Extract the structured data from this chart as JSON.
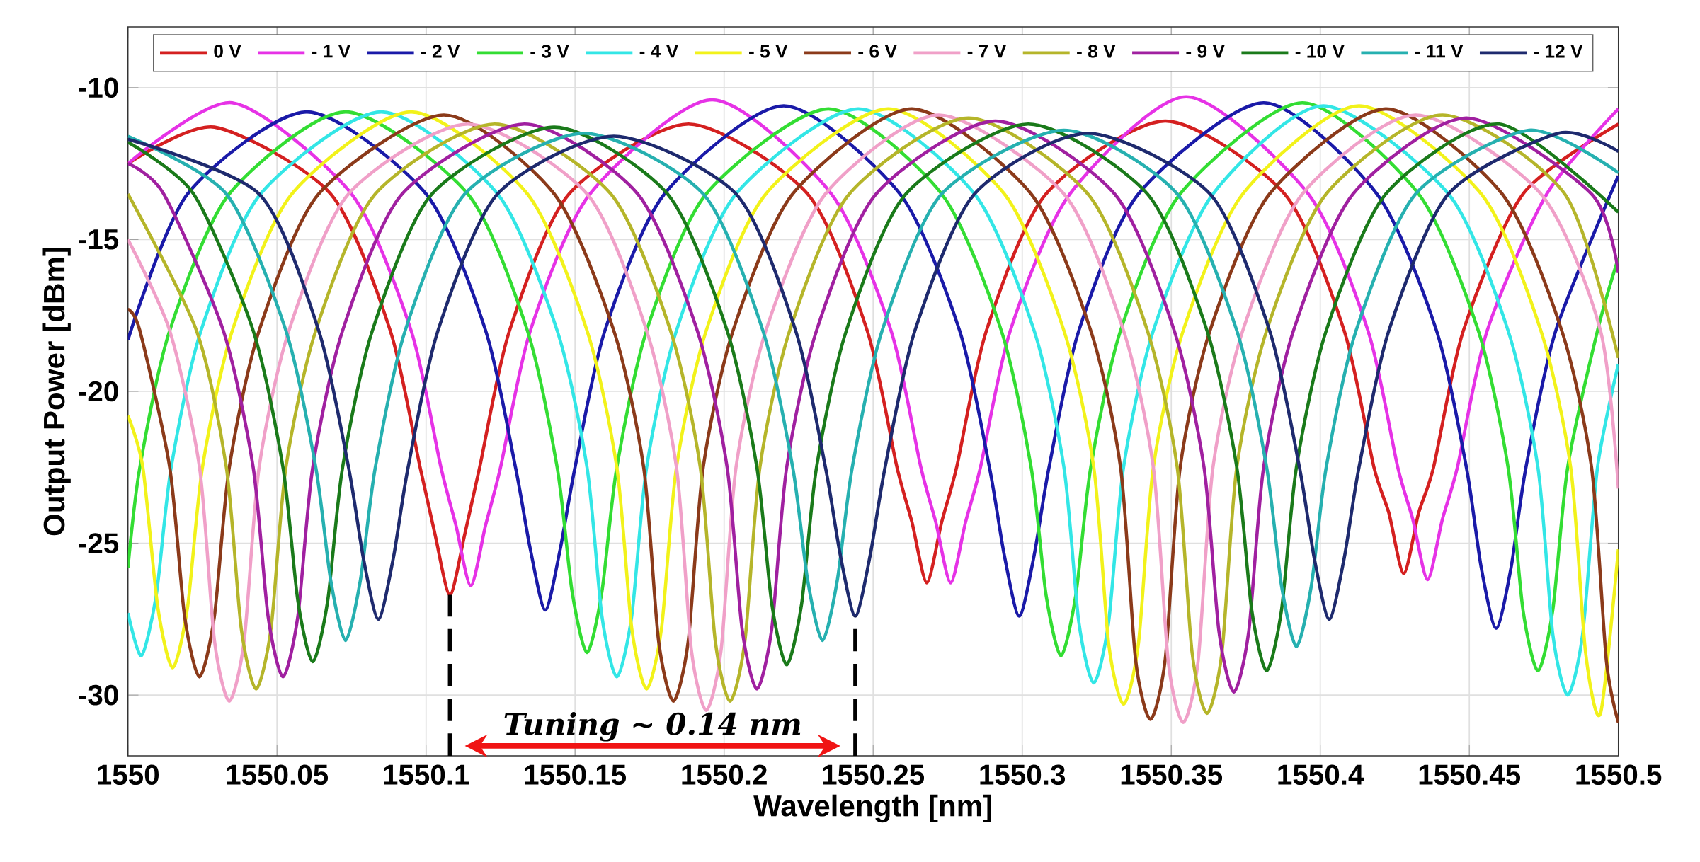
{
  "chart_data": {
    "type": "line",
    "xlabel": "Wavelength [nm]",
    "ylabel": "Output Power [dBm]",
    "xlim": [
      1550,
      1550.5
    ],
    "ylim": [
      -32,
      -8
    ],
    "xticks": [
      1550,
      1550.05,
      1550.1,
      1550.15,
      1550.2,
      1550.25,
      1550.3,
      1550.35,
      1550.4,
      1550.45,
      1550.5
    ],
    "yticks": [
      -30,
      -25,
      -20,
      -15,
      -10
    ],
    "grid": true,
    "legend": "top",
    "marker": "none",
    "line_style": "solid",
    "ref_lines": [
      {
        "axis": "x",
        "value": 1550.108,
        "color": "#000000",
        "line_style": "dashed"
      },
      {
        "axis": "x",
        "value": 1550.244,
        "color": "#000000",
        "line_style": "dashed"
      }
    ],
    "annotations": [
      "Tuning ~ 0.14 nm"
    ],
    "series": [
      {
        "name": "0 V",
        "color": "#d42020",
        "x": [
          1550,
          1550.029,
          1550.068,
          1550.088,
          1550.098,
          1550.103,
          1550.108,
          1550.113,
          1550.118,
          1550.128,
          1550.148,
          1550.188,
          1550.228,
          1550.248,
          1550.258,
          1550.263,
          1550.268,
          1550.273,
          1550.278,
          1550.288,
          1550.308,
          1550.348,
          1550.388,
          1550.408,
          1550.418,
          1550.423,
          1550.428,
          1550.433,
          1550.438,
          1550.448,
          1550.468,
          1550.5
        ],
        "values": [
          -12.5,
          -11.3,
          -13.5,
          -18.0,
          -22.5,
          -24.7,
          -26.7,
          -24.7,
          -22.5,
          -18.0,
          -13.5,
          -11.2,
          -13.5,
          -18.0,
          -22.5,
          -24.3,
          -26.3,
          -24.3,
          -22.5,
          -18.0,
          -13.5,
          -11.1,
          -13.5,
          -18.0,
          -22.5,
          -24.0,
          -26.0,
          -24.0,
          -22.5,
          -18.0,
          -13.5,
          -11.2
        ]
      },
      {
        "name": "- 1 V",
        "color": "#e632e6",
        "x": [
          1550,
          1550.035,
          1550.075,
          1550.095,
          1550.105,
          1550.11,
          1550.115,
          1550.12,
          1550.125,
          1550.135,
          1550.155,
          1550.196,
          1550.236,
          1550.256,
          1550.266,
          1550.271,
          1550.276,
          1550.281,
          1550.286,
          1550.296,
          1550.316,
          1550.355,
          1550.396,
          1550.416,
          1550.426,
          1550.431,
          1550.436,
          1550.441,
          1550.446,
          1550.456,
          1550.476,
          1550.5
        ],
        "values": [
          -12.5,
          -10.5,
          -13.5,
          -18.0,
          -22.5,
          -24.4,
          -26.4,
          -24.4,
          -22.5,
          -18.0,
          -13.5,
          -10.4,
          -13.5,
          -18.0,
          -22.5,
          -24.3,
          -26.3,
          -24.3,
          -22.5,
          -18.0,
          -13.5,
          -10.3,
          -13.5,
          -18.0,
          -22.5,
          -24.2,
          -26.2,
          -24.2,
          -22.5,
          -18.0,
          -13.5,
          -10.7
        ]
      },
      {
        "name": "- 2 V",
        "color": "#1a1aa8",
        "x": [
          1550,
          1550.02,
          1550.06,
          1550.1,
          1550.12,
          1550.13,
          1550.135,
          1550.14,
          1550.145,
          1550.15,
          1550.16,
          1550.18,
          1550.22,
          1550.259,
          1550.279,
          1550.289,
          1550.294,
          1550.299,
          1550.304,
          1550.309,
          1550.319,
          1550.339,
          1550.381,
          1550.419,
          1550.439,
          1550.449,
          1550.454,
          1550.459,
          1550.464,
          1550.469,
          1550.479,
          1550.5
        ],
        "values": [
          -18.3,
          -13.5,
          -10.8,
          -13.5,
          -18.0,
          -22.5,
          -25.2,
          -27.2,
          -25.2,
          -22.5,
          -18.0,
          -13.5,
          -10.6,
          -13.5,
          -18.0,
          -22.5,
          -25.4,
          -27.4,
          -25.4,
          -22.5,
          -18.0,
          -13.5,
          -10.5,
          -13.5,
          -18.0,
          -22.5,
          -25.8,
          -27.8,
          -25.8,
          -22.5,
          -18.0,
          -12.9
        ]
      },
      {
        "name": "- 3 V",
        "color": "#33dd33",
        "x": [
          1550,
          1550.004,
          1550.014,
          1550.034,
          1550.073,
          1550.114,
          1550.134,
          1550.144,
          1550.149,
          1550.154,
          1550.159,
          1550.164,
          1550.174,
          1550.194,
          1550.235,
          1550.273,
          1550.293,
          1550.303,
          1550.308,
          1550.313,
          1550.318,
          1550.323,
          1550.333,
          1550.353,
          1550.394,
          1550.433,
          1550.453,
          1550.463,
          1550.468,
          1550.473,
          1550.478,
          1550.483,
          1550.493,
          1550.5
        ],
        "values": [
          -25.8,
          -22.5,
          -18.0,
          -13.5,
          -10.8,
          -13.5,
          -18.0,
          -22.5,
          -26.6,
          -28.6,
          -26.6,
          -22.5,
          -18.0,
          -13.5,
          -10.7,
          -13.5,
          -18.0,
          -22.5,
          -26.7,
          -28.7,
          -26.7,
          -22.5,
          -18.0,
          -13.5,
          -10.5,
          -13.5,
          -18.0,
          -22.5,
          -27.2,
          -29.2,
          -27.2,
          -22.5,
          -18.0,
          -15.6
        ]
      },
      {
        "name": "- 4 V",
        "color": "#33e6e6",
        "x": [
          1550,
          1550.0045,
          1550.0095,
          1550.0145,
          1550.0245,
          1550.0445,
          1550.085,
          1550.124,
          1550.144,
          1550.154,
          1550.159,
          1550.164,
          1550.169,
          1550.174,
          1550.184,
          1550.204,
          1550.245,
          1550.284,
          1550.304,
          1550.314,
          1550.319,
          1550.324,
          1550.329,
          1550.334,
          1550.344,
          1550.364,
          1550.401,
          1550.443,
          1550.463,
          1550.473,
          1550.478,
          1550.483,
          1550.488,
          1550.493,
          1550.5
        ],
        "values": [
          -27.3,
          -28.7,
          -26.7,
          -22.5,
          -18.0,
          -13.5,
          -10.8,
          -13.5,
          -18.0,
          -22.5,
          -27.4,
          -29.4,
          -27.4,
          -22.5,
          -18.0,
          -13.5,
          -10.7,
          -13.5,
          -18.0,
          -22.5,
          -27.6,
          -29.6,
          -27.6,
          -22.5,
          -18.0,
          -13.5,
          -10.6,
          -13.5,
          -18.0,
          -22.5,
          -28.0,
          -30.0,
          -28.0,
          -22.5,
          -19.1
        ]
      },
      {
        "name": "- 5 V",
        "color": "#f2f21a",
        "x": [
          1550,
          1550.005,
          1550.01,
          1550.015,
          1550.02,
          1550.025,
          1550.035,
          1550.055,
          1550.095,
          1550.134,
          1550.154,
          1550.164,
          1550.169,
          1550.174,
          1550.179,
          1550.184,
          1550.194,
          1550.214,
          1550.255,
          1550.294,
          1550.314,
          1550.324,
          1550.329,
          1550.334,
          1550.339,
          1550.344,
          1550.354,
          1550.374,
          1550.413,
          1550.454,
          1550.474,
          1550.484,
          1550.489,
          1550.494,
          1550.5
        ],
        "values": [
          -20.8,
          -22.5,
          -27.1,
          -29.1,
          -27.1,
          -22.5,
          -18.0,
          -13.5,
          -10.8,
          -13.5,
          -18.0,
          -22.5,
          -27.8,
          -29.8,
          -27.8,
          -22.5,
          -18.0,
          -13.5,
          -10.7,
          -13.5,
          -18.0,
          -22.5,
          -28.3,
          -30.3,
          -28.3,
          -22.5,
          -18.0,
          -13.5,
          -10.6,
          -13.5,
          -18.0,
          -22.5,
          -28.6,
          -30.6,
          -25.2
        ]
      },
      {
        "name": "- 6 V",
        "color": "#8b3a1a",
        "x": [
          1550,
          1550.004,
          1550.014,
          1550.019,
          1550.024,
          1550.029,
          1550.034,
          1550.044,
          1550.064,
          1550.106,
          1550.143,
          1550.163,
          1550.173,
          1550.178,
          1550.183,
          1550.188,
          1550.193,
          1550.203,
          1550.223,
          1550.263,
          1550.303,
          1550.323,
          1550.333,
          1550.338,
          1550.343,
          1550.348,
          1550.353,
          1550.363,
          1550.383,
          1550.422,
          1550.461,
          1550.481,
          1550.491,
          1550.496,
          1550.5
        ],
        "values": [
          -17.3,
          -18.0,
          -22.5,
          -27.4,
          -29.4,
          -27.4,
          -22.5,
          -18.0,
          -13.5,
          -10.9,
          -13.5,
          -18.0,
          -22.5,
          -28.2,
          -30.2,
          -28.2,
          -22.5,
          -18.0,
          -13.5,
          -10.7,
          -13.5,
          -18.0,
          -22.5,
          -28.8,
          -30.8,
          -28.8,
          -22.5,
          -18.0,
          -13.5,
          -10.7,
          -13.5,
          -18.0,
          -22.5,
          -28.9,
          -30.9
        ]
      },
      {
        "name": "- 7 V",
        "color": "#f0a0c8",
        "x": [
          1550,
          1550.014,
          1550.024,
          1550.029,
          1550.034,
          1550.039,
          1550.044,
          1550.054,
          1550.074,
          1550.114,
          1550.154,
          1550.174,
          1550.184,
          1550.189,
          1550.194,
          1550.199,
          1550.204,
          1550.214,
          1550.234,
          1550.272,
          1550.314,
          1550.334,
          1550.344,
          1550.349,
          1550.354,
          1550.359,
          1550.364,
          1550.374,
          1550.394,
          1550.432,
          1550.474,
          1550.494,
          1550.5
        ],
        "values": [
          -15.0,
          -18.0,
          -22.5,
          -28.2,
          -30.2,
          -28.2,
          -22.5,
          -18.0,
          -13.5,
          -11.2,
          -13.5,
          -18.0,
          -22.5,
          -28.5,
          -30.5,
          -28.5,
          -22.5,
          -18.0,
          -13.5,
          -10.9,
          -13.5,
          -18.0,
          -22.5,
          -28.9,
          -30.9,
          -28.9,
          -22.5,
          -18.0,
          -13.5,
          -10.9,
          -13.5,
          -18.0,
          -23.2
        ]
      },
      {
        "name": "- 8 V",
        "color": "#b5b52a",
        "x": [
          1550,
          1550.023,
          1550.033,
          1550.038,
          1550.043,
          1550.048,
          1550.053,
          1550.063,
          1550.083,
          1550.123,
          1550.162,
          1550.182,
          1550.192,
          1550.197,
          1550.202,
          1550.207,
          1550.212,
          1550.222,
          1550.242,
          1550.282,
          1550.322,
          1550.342,
          1550.352,
          1550.357,
          1550.362,
          1550.367,
          1550.372,
          1550.382,
          1550.402,
          1550.441,
          1550.482,
          1550.5
        ],
        "values": [
          -13.5,
          -18.0,
          -22.5,
          -27.8,
          -29.8,
          -27.8,
          -22.5,
          -18.0,
          -13.5,
          -11.2,
          -13.5,
          -18.0,
          -22.5,
          -28.2,
          -30.2,
          -28.2,
          -22.5,
          -18.0,
          -13.5,
          -11.0,
          -13.5,
          -18.0,
          -22.5,
          -28.6,
          -30.6,
          -28.6,
          -22.5,
          -18.0,
          -13.5,
          -10.9,
          -13.5,
          -18.9
        ]
      },
      {
        "name": "- 9 V",
        "color": "#a020a0",
        "x": [
          1550,
          1550.012,
          1550.032,
          1550.042,
          1550.047,
          1550.052,
          1550.057,
          1550.062,
          1550.072,
          1550.092,
          1550.133,
          1550.171,
          1550.191,
          1550.201,
          1550.206,
          1550.211,
          1550.216,
          1550.221,
          1550.231,
          1550.251,
          1550.291,
          1550.331,
          1550.351,
          1550.361,
          1550.366,
          1550.371,
          1550.376,
          1550.381,
          1550.391,
          1550.411,
          1550.449,
          1550.491,
          1550.5
        ],
        "values": [
          -12.5,
          -13.5,
          -18.0,
          -22.5,
          -27.4,
          -29.4,
          -27.4,
          -22.5,
          -18.0,
          -13.5,
          -11.2,
          -13.5,
          -18.0,
          -22.5,
          -27.8,
          -29.8,
          -27.8,
          -22.5,
          -18.0,
          -13.5,
          -11.1,
          -13.5,
          -18.0,
          -22.5,
          -27.9,
          -29.9,
          -27.9,
          -22.5,
          -18.0,
          -13.5,
          -11.0,
          -13.5,
          -16.1
        ]
      },
      {
        "name": "- 10 V",
        "color": "#1a7a1a",
        "x": [
          1550,
          1550.022,
          1550.042,
          1550.052,
          1550.057,
          1550.062,
          1550.067,
          1550.072,
          1550.082,
          1550.102,
          1550.143,
          1550.181,
          1550.201,
          1550.211,
          1550.216,
          1550.221,
          1550.226,
          1550.231,
          1550.241,
          1550.261,
          1550.302,
          1550.342,
          1550.362,
          1550.372,
          1550.377,
          1550.382,
          1550.387,
          1550.392,
          1550.402,
          1550.422,
          1550.46,
          1550.5
        ],
        "values": [
          -11.8,
          -13.5,
          -18.0,
          -22.5,
          -26.9,
          -28.9,
          -26.9,
          -22.5,
          -18.0,
          -13.5,
          -11.3,
          -13.5,
          -18.0,
          -22.5,
          -27.0,
          -29.0,
          -27.0,
          -22.5,
          -18.0,
          -13.5,
          -11.2,
          -13.5,
          -18.0,
          -22.5,
          -27.2,
          -29.2,
          -27.2,
          -22.5,
          -18.0,
          -13.5,
          -11.2,
          -14.1
        ]
      },
      {
        "name": "- 11 V",
        "color": "#26b0b0",
        "x": [
          1550,
          1550.033,
          1550.053,
          1550.063,
          1550.068,
          1550.073,
          1550.078,
          1550.083,
          1550.093,
          1550.113,
          1550.153,
          1550.193,
          1550.213,
          1550.223,
          1550.228,
          1550.233,
          1550.238,
          1550.243,
          1550.253,
          1550.273,
          1550.314,
          1550.352,
          1550.372,
          1550.382,
          1550.387,
          1550.392,
          1550.397,
          1550.402,
          1550.412,
          1550.432,
          1550.47,
          1550.5
        ],
        "values": [
          -11.6,
          -13.5,
          -18.0,
          -22.5,
          -26.2,
          -28.2,
          -26.2,
          -22.5,
          -18.0,
          -13.5,
          -11.5,
          -13.5,
          -18.0,
          -22.5,
          -26.2,
          -28.2,
          -26.2,
          -22.5,
          -18.0,
          -13.5,
          -11.4,
          -13.5,
          -18.0,
          -22.5,
          -26.4,
          -28.4,
          -26.4,
          -22.5,
          -18.0,
          -13.5,
          -11.4,
          -12.8
        ]
      },
      {
        "name": "- 12 V",
        "color": "#1e2a6e",
        "x": [
          1550,
          1550.044,
          1550.064,
          1550.074,
          1550.079,
          1550.084,
          1550.089,
          1550.094,
          1550.104,
          1550.124,
          1550.163,
          1550.204,
          1550.224,
          1550.234,
          1550.239,
          1550.244,
          1550.249,
          1550.254,
          1550.264,
          1550.284,
          1550.322,
          1550.363,
          1550.383,
          1550.393,
          1550.398,
          1550.403,
          1550.408,
          1550.413,
          1550.423,
          1550.443,
          1550.48,
          1550.5
        ],
        "values": [
          -11.7,
          -13.5,
          -18.0,
          -22.5,
          -25.5,
          -27.5,
          -25.5,
          -22.5,
          -18.0,
          -13.5,
          -11.6,
          -13.5,
          -18.0,
          -22.5,
          -25.4,
          -27.4,
          -25.4,
          -22.5,
          -18.0,
          -13.5,
          -11.5,
          -13.5,
          -18.0,
          -22.5,
          -25.5,
          -27.5,
          -25.5,
          -22.5,
          -18.0,
          -13.5,
          -11.5,
          -12.1
        ]
      }
    ]
  }
}
